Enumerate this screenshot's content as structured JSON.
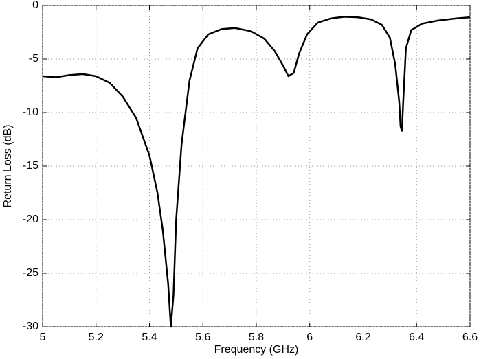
{
  "chart_data": {
    "type": "line",
    "x_label": "Frequency (GHz)",
    "y_label": "Return Loss (dB)",
    "x": [
      5.0,
      5.05,
      5.1,
      5.15,
      5.2,
      5.25,
      5.3,
      5.35,
      5.4,
      5.43,
      5.45,
      5.47,
      5.48,
      5.49,
      5.5,
      5.52,
      5.55,
      5.58,
      5.62,
      5.67,
      5.72,
      5.78,
      5.83,
      5.87,
      5.9,
      5.92,
      5.94,
      5.96,
      5.99,
      6.03,
      6.08,
      6.13,
      6.18,
      6.23,
      6.27,
      6.3,
      6.32,
      6.335,
      6.34,
      6.345,
      6.35,
      6.36,
      6.38,
      6.42,
      6.48,
      6.55,
      6.6
    ],
    "series": [
      {
        "color": "#000000",
        "values": [
          -6.6,
          -6.7,
          -6.5,
          -6.4,
          -6.6,
          -7.2,
          -8.5,
          -10.5,
          -14,
          -17.5,
          -21,
          -26,
          -30,
          -27,
          -20,
          -13,
          -7,
          -4,
          -2.7,
          -2.2,
          -2.1,
          -2.4,
          -3.1,
          -4.3,
          -5.6,
          -6.6,
          -6.3,
          -4.5,
          -2.7,
          -1.6,
          -1.2,
          -1.05,
          -1.1,
          -1.3,
          -1.8,
          -3,
          -5.5,
          -9,
          -11.3,
          -11.7,
          -9,
          -4,
          -2.3,
          -1.7,
          -1.4,
          -1.2,
          -1.1
        ]
      }
    ],
    "xlim": [
      5,
      6.6
    ],
    "ylim": [
      -30,
      0
    ],
    "xticks": [
      5,
      5.2,
      5.4,
      5.6,
      5.8,
      6,
      6.2,
      6.4,
      6.6
    ],
    "yticks": [
      -30,
      -25,
      -20,
      -15,
      -10,
      -5,
      0
    ],
    "grid": true
  }
}
